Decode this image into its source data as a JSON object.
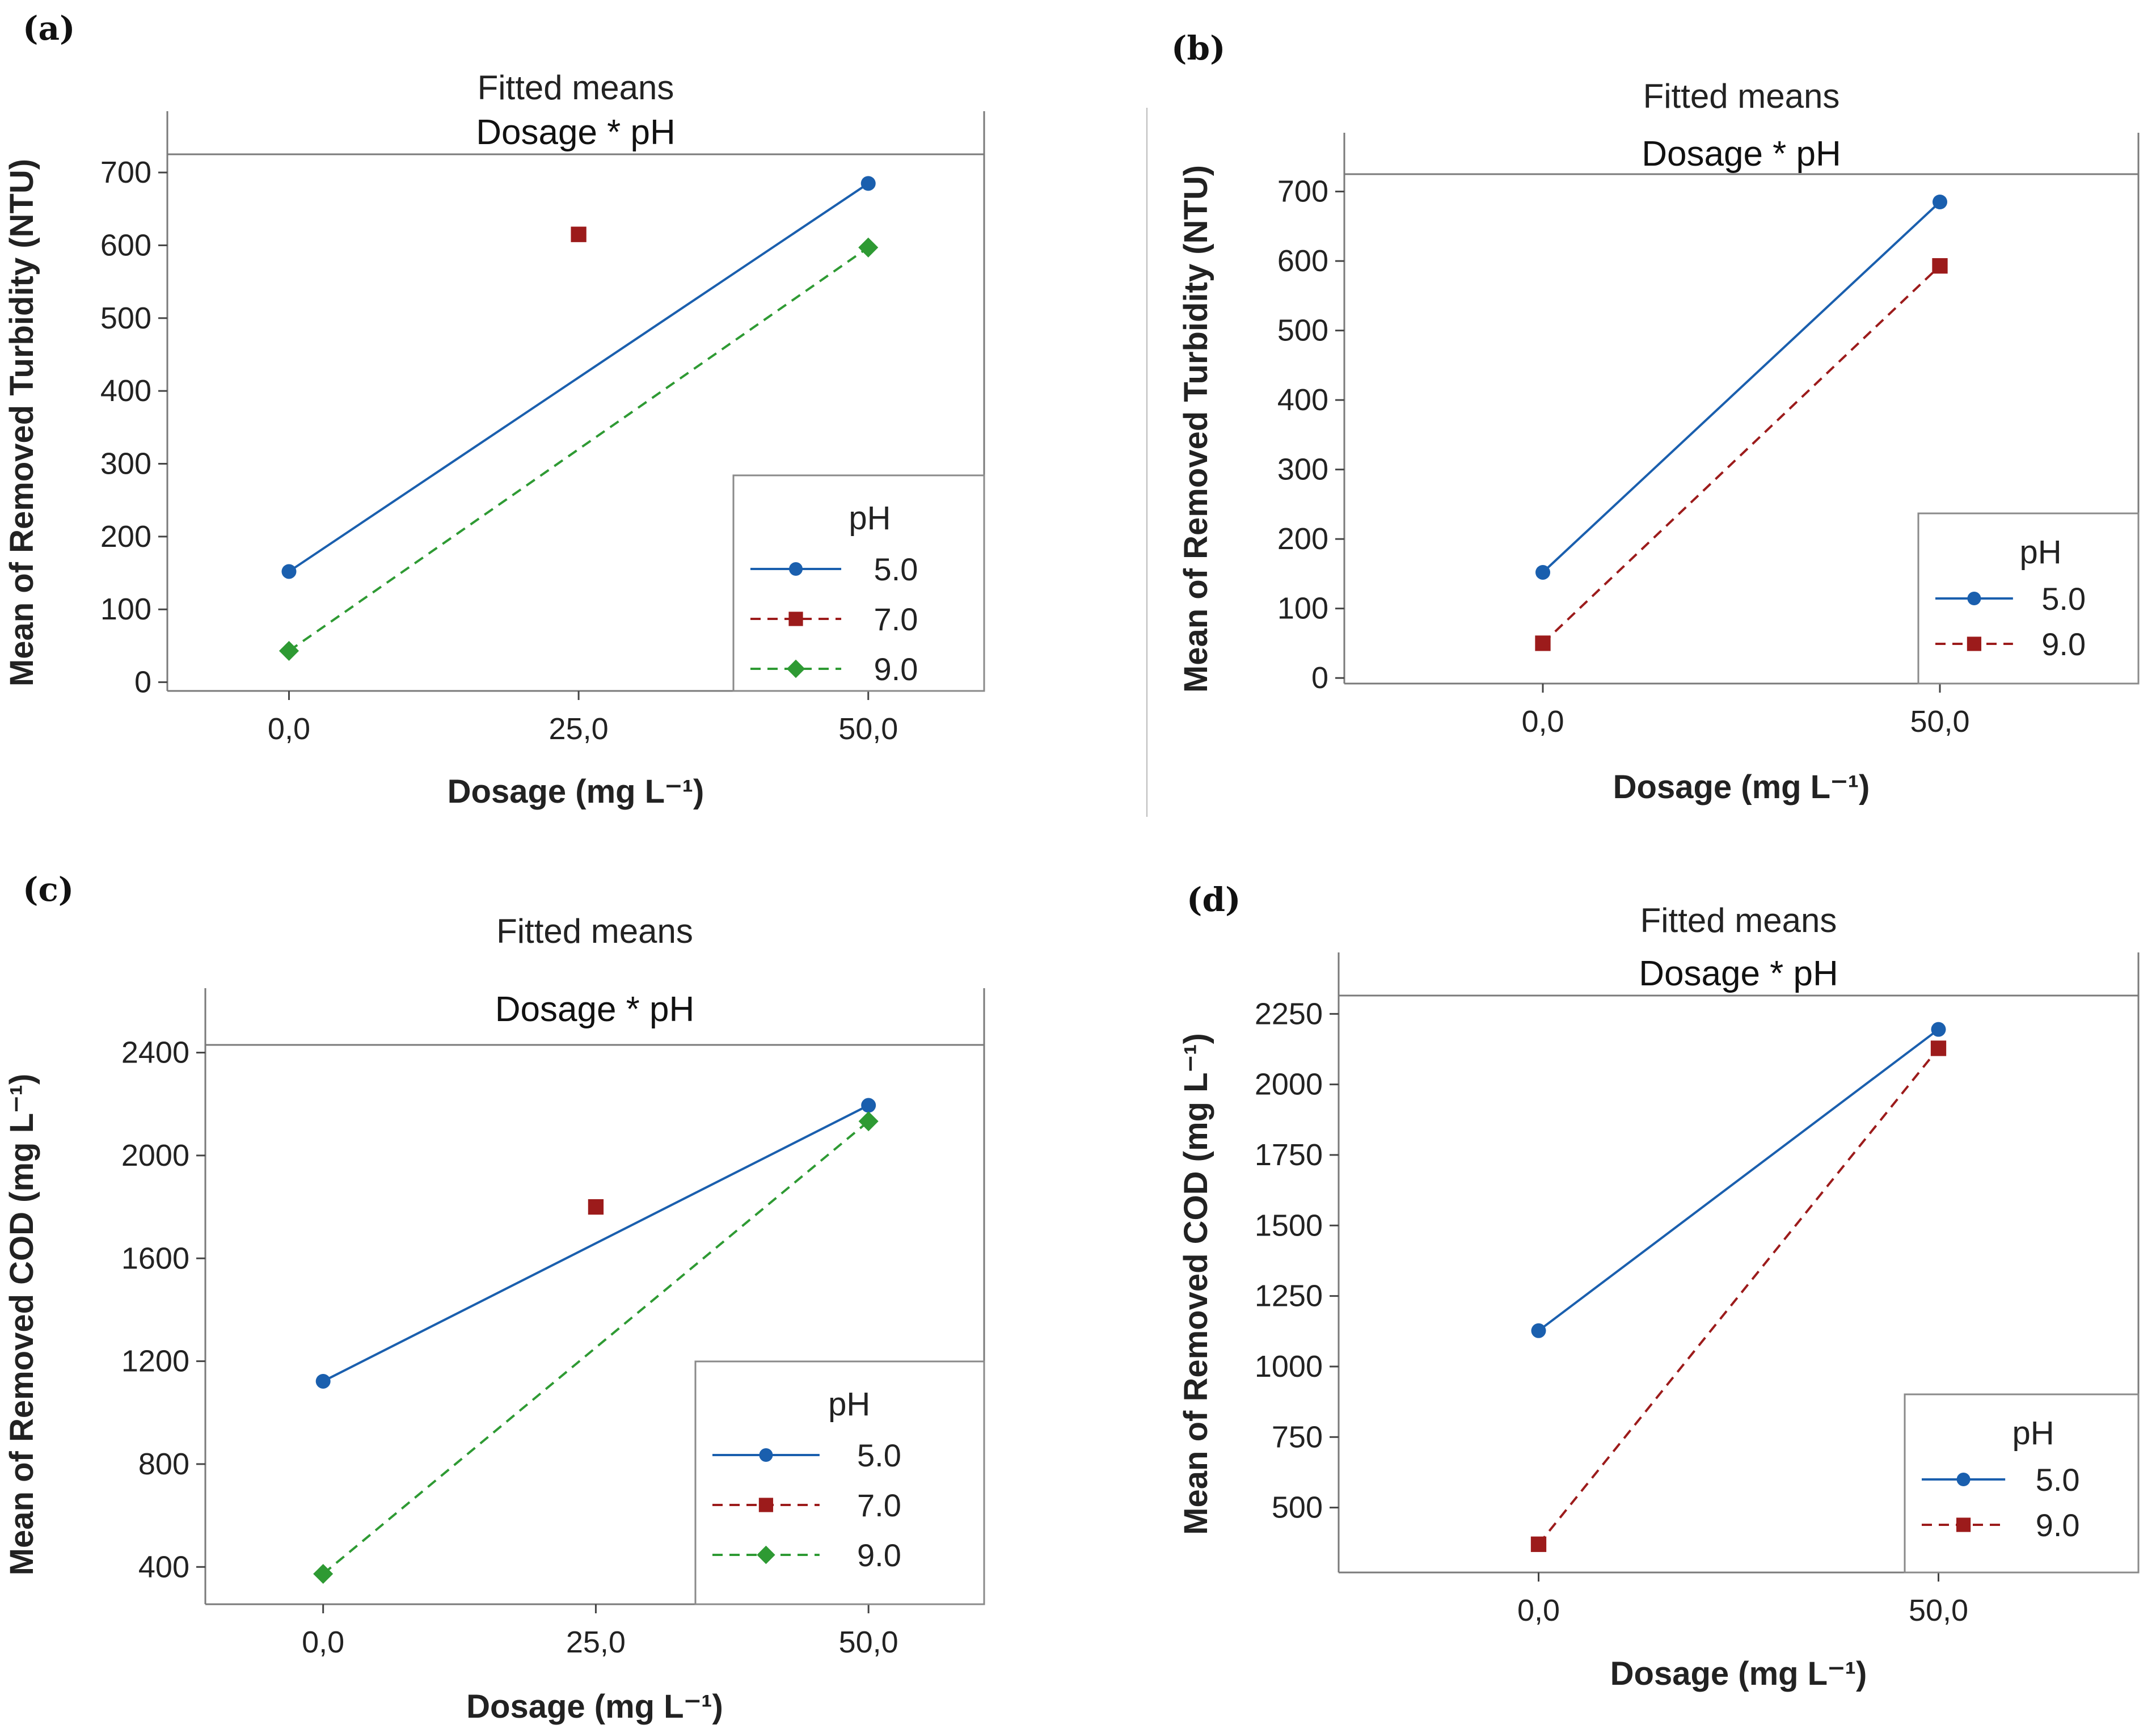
{
  "colors": {
    "ph_5": "#1a5fae",
    "ph_7": "#9c1b1b",
    "ph_9": "#2e9a33"
  },
  "chart_data": [
    {
      "panel": "(a)",
      "type": "line",
      "title": "Fitted means",
      "header": "Dosage * pH",
      "xlabel": "Dosage (mg L⁻¹)",
      "ylabel": "Mean of Removed Turbidity (NTU)",
      "x_categories": [
        "0,0",
        "25,0",
        "50,0"
      ],
      "x_values": [
        0,
        25,
        50
      ],
      "xlim": [
        -10.5,
        60
      ],
      "ylim": [
        -12,
        725
      ],
      "yticks": [
        0,
        100,
        200,
        300,
        400,
        500,
        600,
        700
      ],
      "ytick_labels": [
        "0",
        "100",
        "200",
        "300",
        "400",
        "500",
        "600",
        "700"
      ],
      "legend_title": "pH",
      "legend_position": "bottom-right",
      "grid": false,
      "series": [
        {
          "name": "5.0",
          "x": [
            0,
            50
          ],
          "y": [
            152,
            685
          ],
          "marker": "circle",
          "line": "solid",
          "color_key": "ph_5"
        },
        {
          "name": "7.0",
          "x": [
            25
          ],
          "y": [
            615
          ],
          "marker": "square",
          "line": "dashed",
          "color_key": "ph_7"
        },
        {
          "name": "9.0",
          "x": [
            0,
            50
          ],
          "y": [
            43,
            597
          ],
          "marker": "diamond",
          "line": "dashed",
          "color_key": "ph_9"
        }
      ]
    },
    {
      "panel": "(b)",
      "type": "line",
      "title": "Fitted means",
      "header": "Dosage * pH",
      "xlabel": "Dosage (mg L⁻¹)",
      "ylabel": "Mean of Removed Turbidity (NTU)",
      "x_categories": [
        "0,0",
        "50,0"
      ],
      "x_values": [
        0,
        50
      ],
      "xlim": [
        -25,
        75
      ],
      "ylim": [
        -8,
        725
      ],
      "yticks": [
        0,
        100,
        200,
        300,
        400,
        500,
        600,
        700
      ],
      "ytick_labels": [
        "0",
        "100",
        "200",
        "300",
        "400",
        "500",
        "600",
        "700"
      ],
      "legend_title": "pH",
      "legend_position": "bottom-right",
      "grid": false,
      "series": [
        {
          "name": "5.0",
          "x": [
            0,
            50
          ],
          "y": [
            152,
            685
          ],
          "marker": "circle",
          "line": "solid",
          "color_key": "ph_5"
        },
        {
          "name": "9.0",
          "x": [
            0,
            50
          ],
          "y": [
            50,
            593
          ],
          "marker": "square",
          "line": "dashed",
          "color_key": "ph_7"
        }
      ]
    },
    {
      "panel": "(c)",
      "type": "line",
      "title": "Fitted means",
      "header": "Dosage * pH",
      "xlabel": "Dosage (mg L⁻¹)",
      "ylabel": "Mean of Removed COD (mg L⁻¹)",
      "x_categories": [
        "0,0",
        "25,0",
        "50,0"
      ],
      "x_values": [
        0,
        25,
        50
      ],
      "xlim": [
        -10.8,
        60.6
      ],
      "ylim": [
        255,
        2430
      ],
      "yticks": [
        400,
        800,
        1200,
        1600,
        2000,
        2400
      ],
      "ytick_labels": [
        "400",
        "800",
        "1200",
        "1600",
        "2000",
        "2400"
      ],
      "legend_title": "pH",
      "legend_position": "bottom-right",
      "grid": false,
      "series": [
        {
          "name": "5.0",
          "x": [
            0,
            50
          ],
          "y": [
            1122,
            2195
          ],
          "marker": "circle",
          "line": "solid",
          "color_key": "ph_5"
        },
        {
          "name": "7.0",
          "x": [
            25
          ],
          "y": [
            1800
          ],
          "marker": "square",
          "line": "dashed",
          "color_key": "ph_7"
        },
        {
          "name": "9.0",
          "x": [
            0,
            50
          ],
          "y": [
            373,
            2133
          ],
          "marker": "diamond",
          "line": "dashed",
          "color_key": "ph_9"
        }
      ]
    },
    {
      "panel": "(d)",
      "type": "line",
      "title": "Fitted means",
      "header": "Dosage * pH",
      "xlabel": "Dosage (mg L⁻¹)",
      "ylabel": "Mean of Removed COD (mg L⁻¹)",
      "x_categories": [
        "0,0",
        "50,0"
      ],
      "x_values": [
        0,
        50
      ],
      "xlim": [
        -25,
        75
      ],
      "ylim": [
        270,
        2315
      ],
      "yticks": [
        500,
        750,
        1000,
        1250,
        1500,
        1750,
        2000,
        2250
      ],
      "ytick_labels": [
        "500",
        "750",
        "1000",
        "1250",
        "1500",
        "1750",
        "2000",
        "2250"
      ],
      "legend_title": "pH",
      "legend_position": "bottom-right",
      "grid": false,
      "series": [
        {
          "name": "5.0",
          "x": [
            0,
            50
          ],
          "y": [
            1127,
            2195
          ],
          "marker": "circle",
          "line": "solid",
          "color_key": "ph_5"
        },
        {
          "name": "9.0",
          "x": [
            0,
            50
          ],
          "y": [
            370,
            2128
          ],
          "marker": "square",
          "line": "dashed",
          "color_key": "ph_7"
        }
      ]
    }
  ]
}
